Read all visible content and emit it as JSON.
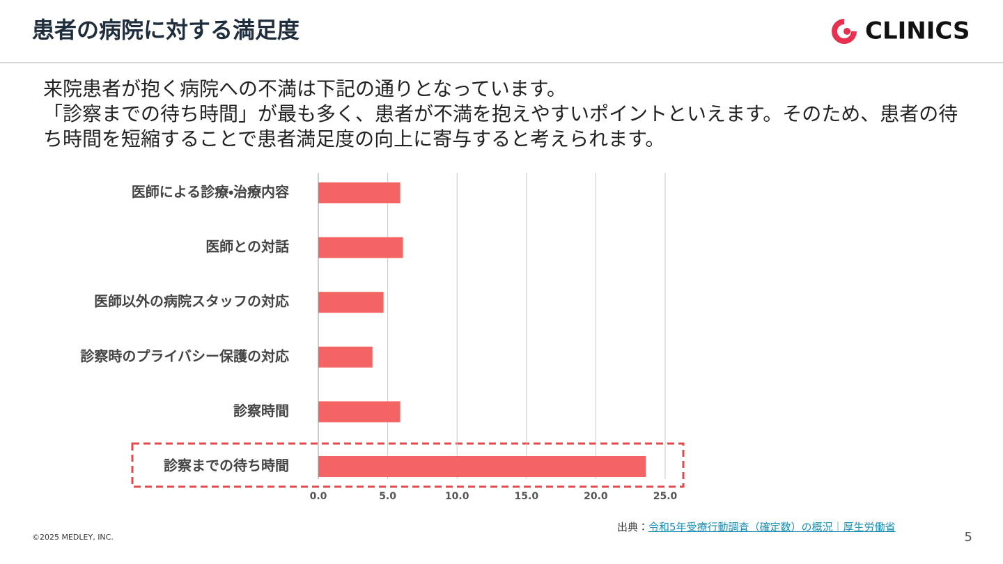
{
  "header": {
    "title": "患者の病院に対する満足度",
    "logo": "CLINICS"
  },
  "body": {
    "paragraphs": [
      "来院患者が抱く病院への不満は下記の通りとなっています。",
      "「診察までの待ち時間」が最も多く、患者が不満を抱えやすいポイントといえます。そのため、患者の待ち時間を短縮することで患者満足度の向上に寄与すると考えられます。"
    ]
  },
  "chart_data": {
    "type": "hbar",
    "categories": [
      "医師による診療・治療内容",
      "医師との対話",
      "医師以外の病院スタッフの対応",
      "診察時のプライバシー保護の対応",
      "診察時間",
      "診察までの待ち時間"
    ],
    "values": [
      5.9,
      6.1,
      4.7,
      3.9,
      5.9,
      23.6
    ],
    "color": "#f46464",
    "xlim": [
      0,
      25
    ],
    "xticks": [
      {
        "value": 0,
        "label": "0.0"
      },
      {
        "value": 5,
        "label": "5.0"
      },
      {
        "value": 10,
        "label": "10.0"
      },
      {
        "value": 15,
        "label": "15.0"
      },
      {
        "value": 20,
        "label": "20.0"
      },
      {
        "value": 25,
        "label": "25.0"
      }
    ],
    "grid": true
  },
  "footer": {
    "source_prefix": "出典：",
    "source_link": "令和5年受療行動調査（確定数）の概況｜厚生労働省",
    "copyright": "©2025 MEDLEY, INC.",
    "page_number": "5"
  }
}
